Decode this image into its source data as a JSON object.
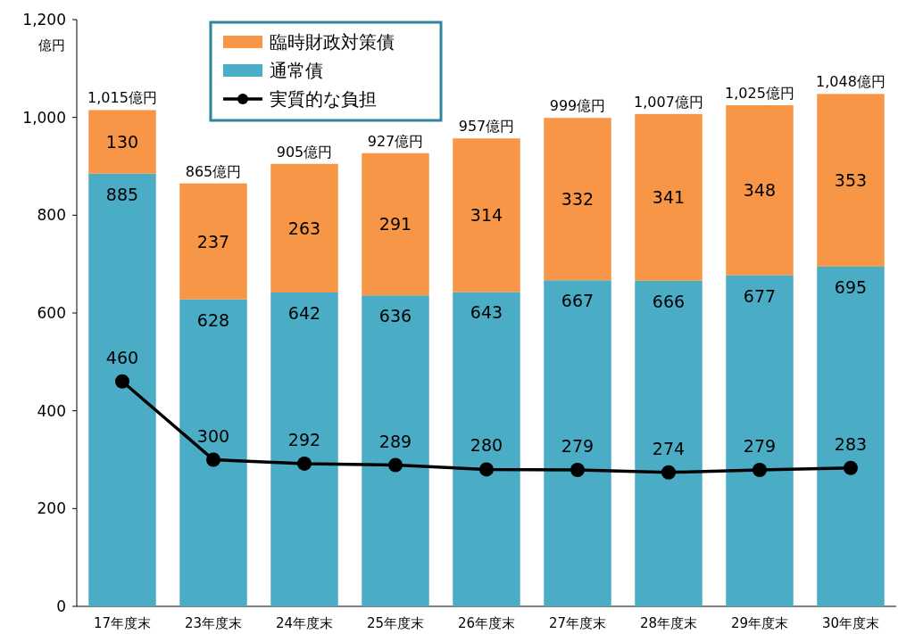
{
  "chart_data": {
    "type": "bar",
    "stacked": true,
    "ylabel": "億円",
    "categories": [
      "17年度末",
      "23年度末",
      "24年度末",
      "25年度末",
      "26年度末",
      "27年度末",
      "28年度末",
      "29年度末",
      "30年度末"
    ],
    "series": [
      {
        "name": "通常債",
        "type": "bar",
        "color": "#4bacc6",
        "values": [
          885,
          628,
          642,
          636,
          643,
          667,
          666,
          677,
          695
        ]
      },
      {
        "name": "臨時財政対策債",
        "type": "bar",
        "color": "#f79646",
        "values": [
          130,
          237,
          263,
          291,
          314,
          332,
          341,
          348,
          353
        ]
      },
      {
        "name": "実質的な負担",
        "type": "line",
        "color": "#000000",
        "values": [
          460,
          300,
          292,
          289,
          280,
          279,
          274,
          279,
          283
        ]
      }
    ],
    "totals": [
      "1,015億円",
      "865億円",
      "905億円",
      "927億円",
      "957億円",
      "999億円",
      "1,007億円",
      "1,025億円",
      "1,048億円"
    ],
    "ylim": [
      0,
      1200
    ],
    "yticks": [
      0,
      200,
      400,
      600,
      800,
      {
        "value": 1000,
        "label": "1,000"
      },
      {
        "value": 1200,
        "label": "1,200"
      }
    ],
    "data_labels": true,
    "legend": "top left",
    "grid": false,
    "marker": "circle",
    "line_style": "solid"
  }
}
